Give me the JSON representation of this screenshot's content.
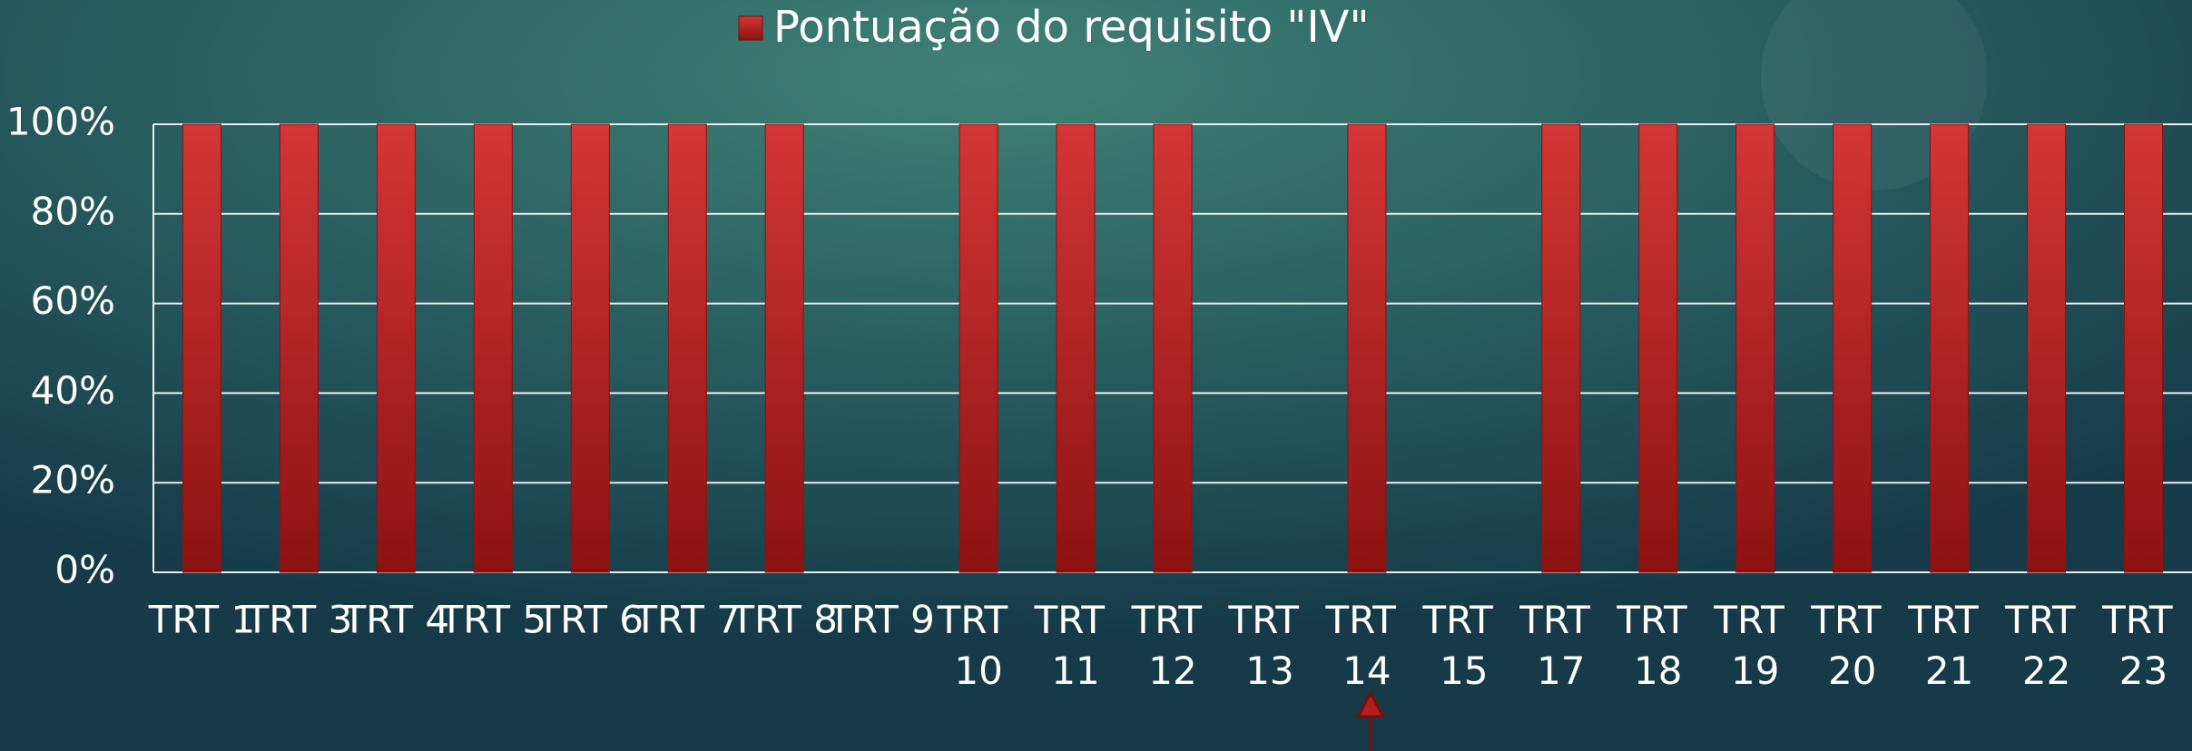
{
  "chart_data": {
    "type": "bar",
    "categories": [
      "TRT 1",
      "TRT 3",
      "TRT 4",
      "TRT 5",
      "TRT 6",
      "TRT 7",
      "TRT 8",
      "TRT 9",
      "TRT 10",
      "TRT 11",
      "TRT 12",
      "TRT 13",
      "TRT 14",
      "TRT 15",
      "TRT 17",
      "TRT 18",
      "TRT 19",
      "TRT 20",
      "TRT 21",
      "TRT 22",
      "TRT 23"
    ],
    "series": [
      {
        "name": "Pontuação do requisito \"IV\"",
        "color": "#c62d2d",
        "values": [
          100,
          100,
          100,
          100,
          100,
          100,
          100,
          0,
          100,
          100,
          100,
          0,
          100,
          0,
          100,
          100,
          100,
          100,
          100,
          100,
          100
        ]
      }
    ],
    "ylim": [
      0,
      100
    ],
    "yticks": [
      {
        "value": 0,
        "label": "0%"
      },
      {
        "value": 20,
        "label": "20%"
      },
      {
        "value": 40,
        "label": "40%"
      },
      {
        "value": 60,
        "label": "60%"
      },
      {
        "value": 80,
        "label": "80%"
      },
      {
        "value": 100,
        "label": "100%"
      }
    ],
    "grid": true,
    "legend": "top"
  }
}
